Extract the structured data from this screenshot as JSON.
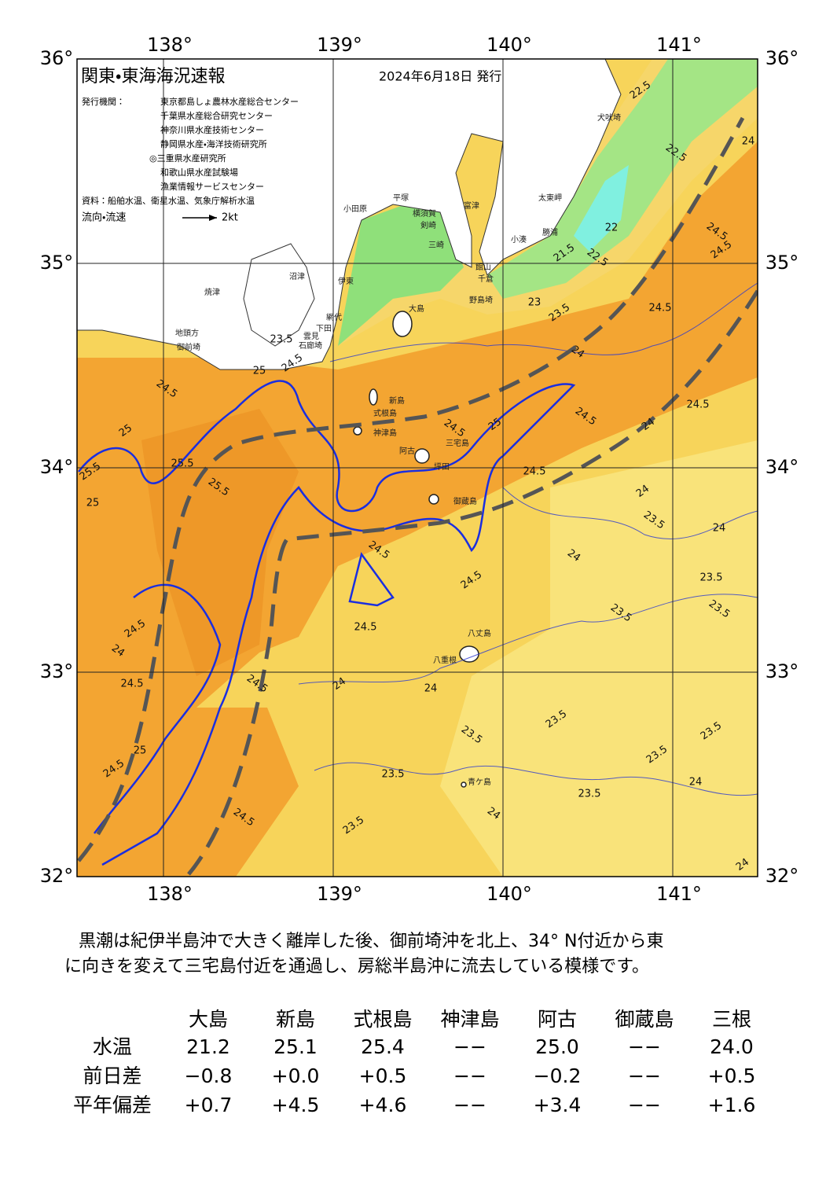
{
  "header": {
    "title": "関東・東海海況速報",
    "date": "2024年6月18日 発行",
    "issuer_label": "発行機関：",
    "issuers": [
      "東京都島しょ農林水産総合センター",
      "千葉県水産総合研究センター",
      "神奈川県水産技術センター",
      "静岡県水産・海洋技術研究所",
      "◎三重県水産研究所",
      "和歌山県水産試験場",
      "漁業情報サービスセンター"
    ],
    "source": "資料：船舶水温、衛星水温、気象庁解析水温",
    "flow_label": "流向・流速",
    "flow_unit": "2kt"
  },
  "map": {
    "lon_ticks": [
      "138°",
      "139°",
      "140°",
      "141°"
    ],
    "lat_ticks": [
      "36°",
      "35°",
      "34°",
      "33°",
      "32°"
    ],
    "contour_labels": [
      "25.5",
      "25",
      "24.5",
      "25",
      "25.5",
      "25.5",
      "24.5",
      "25",
      "24.5",
      "25",
      "24.5",
      "24.5",
      "24",
      "24.5",
      "24.5",
      "24.5",
      "24.5",
      "24",
      "23.5",
      "23",
      "22.5",
      "21.5",
      "22",
      "22.5",
      "22.5",
      "23.5",
      "24.5",
      "24.5",
      "24.5",
      "24.5",
      "24.5",
      "24.5",
      "24",
      "24.5",
      "25",
      "24.5",
      "23.5",
      "23.5",
      "23.5",
      "23.5",
      "23.5",
      "23.5",
      "23.5",
      "23.5",
      "23.5",
      "23.5",
      "24",
      "24",
      "24",
      "24",
      "24",
      "24",
      "24",
      "23.5",
      "24",
      "24"
    ],
    "place_names": [
      "犬吠埼",
      "太東岬",
      "勝浦",
      "小湊",
      "館山",
      "千倉",
      "野島埼",
      "富津",
      "横須賀",
      "平塚",
      "小田原",
      "剣崎",
      "三崎",
      "沼津",
      "伊東",
      "網代",
      "下田",
      "雲見",
      "石廊埼",
      "焼津",
      "地頭方",
      "御前埼",
      "大島",
      "新島",
      "式根島",
      "神津島",
      "阿古",
      "三宅島",
      "坪田",
      "御蔵島",
      "八丈島",
      "八重根",
      "青ケ島"
    ]
  },
  "summary": [
    "黒潮は紀伊半島沖で大きく離岸した後、御前埼沖を北上、34° N付近から東",
    "に向きを変えて三宅島付近を通過し、房総半島沖に流去している模様です。"
  ],
  "table": {
    "columns": [
      "大島",
      "新島",
      "式根島",
      "神津島",
      "阿古",
      "御蔵島",
      "三根"
    ],
    "rows": [
      {
        "label": "水温",
        "cells": [
          "21.2",
          "25.1",
          "25.4",
          "−−",
          "25.0",
          "−−",
          "24.0"
        ]
      },
      {
        "label": "前日差",
        "cells": [
          "−0.8",
          "+0.0",
          "+0.5",
          "−−",
          "−0.2",
          "−−",
          "+0.5"
        ]
      },
      {
        "label": "平年偏差",
        "cells": [
          "+0.7",
          "+4.5",
          "+4.6",
          "−−",
          "+3.4",
          "−−",
          "+1.6"
        ]
      }
    ]
  }
}
